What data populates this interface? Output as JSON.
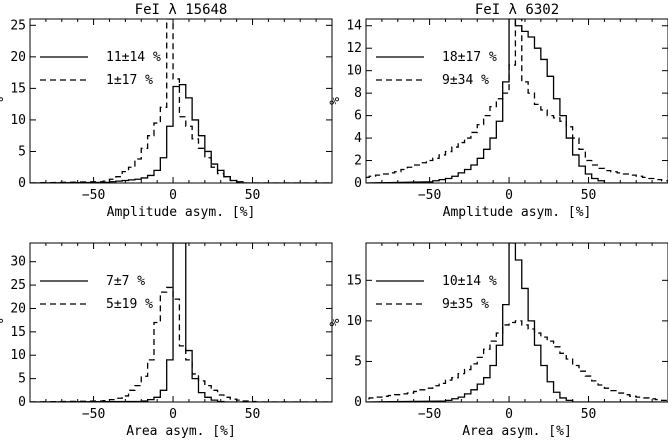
{
  "chart_data": [
    {
      "type": "line",
      "title": "FeI λ 15648",
      "xlabel": "Amplitude asym. [%]",
      "ylabel": "%",
      "xlim": [
        -90,
        100
      ],
      "ylim": [
        0,
        26
      ],
      "xticks": [
        -50,
        0,
        50
      ],
      "yticks": [
        0,
        5,
        10,
        15,
        20,
        25
      ],
      "xtick_labels": [
        "−50",
        "0",
        "50"
      ],
      "ytick_labels": [
        "0",
        "5",
        "10",
        "15",
        "20",
        "25"
      ],
      "legend_position": "top-left",
      "bin_width": 4,
      "series": [
        {
          "name": "11±14 %",
          "style": "solid",
          "x": [
            -42,
            -38,
            -34,
            -30,
            -26,
            -22,
            -18,
            -14,
            -10,
            -6,
            -2,
            2,
            6,
            10,
            14,
            18,
            22,
            26,
            30,
            34,
            38,
            42
          ],
          "y": [
            0.1,
            0.2,
            0.3,
            0.4,
            0.5,
            0.6,
            0.8,
            1.2,
            2,
            4,
            9,
            15.3,
            15.6,
            13.5,
            10,
            7.5,
            5,
            3,
            2,
            1,
            0.4,
            0.2
          ]
        },
        {
          "name": "1±17 %",
          "style": "dashed",
          "x": [
            -46,
            -42,
            -38,
            -34,
            -30,
            -26,
            -22,
            -18,
            -14,
            -10,
            -6,
            -2,
            2,
            6,
            10,
            14,
            18,
            22,
            26,
            30,
            34,
            38,
            42
          ],
          "y": [
            0.2,
            0.3,
            0.6,
            1,
            1.8,
            2.5,
            3.8,
            5.5,
            7.5,
            9.5,
            12,
            26,
            16.5,
            10.5,
            9,
            7,
            5.5,
            4,
            2.5,
            1.5,
            1,
            0.4,
            0.1
          ]
        }
      ]
    },
    {
      "type": "line",
      "title": "FeI λ 6302",
      "xlabel": "Amplitude asym. [%]",
      "ylabel": "%",
      "xlim": [
        -90,
        100
      ],
      "ylim": [
        0,
        14.6
      ],
      "xticks": [
        -50,
        0,
        50
      ],
      "yticks": [
        0,
        2,
        4,
        6,
        8,
        10,
        12,
        14
      ],
      "xtick_labels": [
        "−50",
        "0",
        "50"
      ],
      "ytick_labels": [
        "0",
        "2",
        "4",
        "6",
        "8",
        "10",
        "12",
        "14"
      ],
      "legend_position": "top-left",
      "bin_width": 4,
      "series": [
        {
          "name": "18±17 %",
          "style": "solid",
          "x": [
            -50,
            -46,
            -42,
            -38,
            -34,
            -30,
            -26,
            -22,
            -18,
            -14,
            -10,
            -6,
            -2,
            2,
            6,
            10,
            14,
            18,
            22,
            26,
            30,
            34,
            38,
            42,
            46,
            50,
            54,
            58
          ],
          "y": [
            0.1,
            0.2,
            0.3,
            0.4,
            0.6,
            0.9,
            1.2,
            1.6,
            2.2,
            3,
            4,
            5.5,
            9,
            15,
            14,
            13.5,
            13,
            12,
            11,
            9.5,
            7.5,
            6,
            4,
            2.5,
            1.5,
            0.8,
            0.4,
            0.2
          ]
        },
        {
          "name": "9±34 %",
          "style": "dashed",
          "x": [
            -90,
            -86,
            -82,
            -78,
            -74,
            -70,
            -66,
            -62,
            -58,
            -54,
            -50,
            -46,
            -42,
            -38,
            -34,
            -30,
            -26,
            -22,
            -18,
            -14,
            -10,
            -6,
            -2,
            2,
            6,
            10,
            14,
            18,
            22,
            26,
            30,
            34,
            38,
            42,
            46,
            50,
            54,
            58,
            62,
            66,
            70,
            74,
            78,
            82,
            86,
            90,
            94,
            98
          ],
          "y": [
            0.5,
            0.6,
            0.7,
            0.8,
            0.9,
            1,
            1.2,
            1.4,
            1.6,
            1.8,
            2,
            2.2,
            2.5,
            2.8,
            3.2,
            3.6,
            4,
            4.5,
            5.2,
            6,
            6.8,
            7.5,
            8,
            10.5,
            14.6,
            9,
            8,
            7,
            6.5,
            6,
            5.8,
            5.5,
            5,
            4,
            3,
            2,
            1.6,
            1.3,
            1.1,
            1,
            0.9,
            0.8,
            0.7,
            0.6,
            0.5,
            0.4,
            0.3,
            0.2
          ]
        }
      ]
    },
    {
      "type": "line",
      "title": "",
      "xlabel": "Area asym. [%]",
      "ylabel": "%",
      "xlim": [
        -90,
        100
      ],
      "ylim": [
        0,
        34
      ],
      "xticks": [
        -50,
        0,
        50
      ],
      "yticks": [
        0,
        5,
        10,
        15,
        20,
        25,
        30
      ],
      "xtick_labels": [
        "−50",
        "0",
        "50"
      ],
      "ytick_labels": [
        "0",
        "5",
        "10",
        "15",
        "20",
        "25",
        "30"
      ],
      "legend_position": "top-left",
      "bin_width": 4,
      "series": [
        {
          "name": "7±7 %",
          "style": "solid",
          "x": [
            -22,
            -18,
            -14,
            -10,
            -6,
            -2,
            2,
            6,
            10,
            14,
            18,
            22,
            26,
            30
          ],
          "y": [
            0.1,
            0.2,
            0.5,
            1,
            2.5,
            9,
            34,
            34,
            11,
            5,
            2,
            1,
            0.4,
            0.1
          ]
        },
        {
          "name": "5±19 %",
          "style": "dashed",
          "x": [
            -46,
            -42,
            -38,
            -34,
            -30,
            -26,
            -22,
            -18,
            -14,
            -10,
            -6,
            -2,
            2,
            6,
            10,
            14,
            18,
            22,
            26,
            30,
            34,
            38,
            42,
            46,
            50
          ],
          "y": [
            0.2,
            0.3,
            0.5,
            0.8,
            1.3,
            2.5,
            3.5,
            5.5,
            9,
            17,
            23.5,
            24.5,
            22,
            12,
            9,
            6,
            4.5,
            3.5,
            2.5,
            1.5,
            1,
            0.6,
            0.4,
            0.2,
            0.1
          ]
        }
      ]
    },
    {
      "type": "line",
      "title": "",
      "xlabel": "Area asym. [%]",
      "ylabel": "%",
      "xlim": [
        -90,
        100
      ],
      "ylim": [
        0,
        19.6
      ],
      "xticks": [
        -50,
        0,
        50
      ],
      "yticks": [
        0,
        5,
        10,
        15
      ],
      "xtick_labels": [
        "−50",
        "0",
        "50"
      ],
      "ytick_labels": [
        "0",
        "5",
        "10",
        "15"
      ],
      "legend_position": "top-left",
      "bin_width": 4,
      "series": [
        {
          "name": "10±14 %",
          "style": "solid",
          "x": [
            -42,
            -38,
            -34,
            -30,
            -26,
            -22,
            -18,
            -14,
            -10,
            -6,
            -2,
            2,
            6,
            10,
            14,
            18,
            22,
            26,
            30,
            34,
            38
          ],
          "y": [
            0.1,
            0.2,
            0.4,
            0.6,
            1,
            1.5,
            2.2,
            3,
            4.5,
            7,
            12,
            19.6,
            17.5,
            14,
            10,
            7,
            4.5,
            2.5,
            1.2,
            0.5,
            0.2
          ]
        },
        {
          "name": "9±35 %",
          "style": "dashed",
          "x": [
            -90,
            -86,
            -82,
            -78,
            -74,
            -70,
            -66,
            -62,
            -58,
            -54,
            -50,
            -46,
            -42,
            -38,
            -34,
            -30,
            -26,
            -22,
            -18,
            -14,
            -10,
            -6,
            -2,
            2,
            6,
            10,
            14,
            18,
            22,
            26,
            30,
            34,
            38,
            42,
            46,
            50,
            54,
            58,
            62,
            66,
            70,
            74,
            78,
            82,
            86,
            90,
            94,
            98
          ],
          "y": [
            0.4,
            0.5,
            0.6,
            0.7,
            0.8,
            0.9,
            1,
            1.1,
            1.3,
            1.5,
            1.7,
            2,
            2.3,
            2.7,
            3,
            3.5,
            4,
            4.7,
            5.5,
            6.5,
            7.5,
            8.5,
            9.5,
            9.8,
            10,
            9.5,
            9,
            8.5,
            8,
            7.5,
            6.8,
            6,
            5.3,
            4.5,
            3.8,
            3.2,
            2.6,
            2.1,
            1.7,
            1.4,
            1.1,
            0.9,
            0.7,
            0.6,
            0.5,
            0.4,
            0.3,
            0.2
          ]
        }
      ]
    }
  ]
}
